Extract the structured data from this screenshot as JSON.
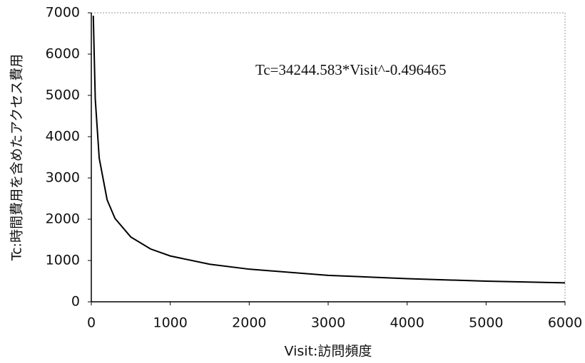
{
  "chart_data": {
    "type": "line",
    "x_label": "Visit:訪問頻度",
    "y_label": "Tc:時間費用を含めたアクセス費用",
    "annotation": "Tc=34244.583*Visit^-0.496465",
    "x": [
      25,
      50,
      100,
      200,
      300,
      500,
      750,
      1000,
      1500,
      2000,
      3000,
      4000,
      5000,
      6000
    ],
    "series": [
      {
        "color": "#000000",
        "values": [
          6930,
          4910,
          3480,
          2470,
          2020,
          1570,
          1280,
          1110,
          910,
          790,
          640,
          560,
          500,
          460
        ]
      }
    ],
    "xlim": [
      0,
      6000
    ],
    "xticks": [
      0,
      1000,
      2000,
      3000,
      4000,
      5000,
      6000
    ],
    "ylim": [
      0,
      7000
    ],
    "yticks": [
      0,
      1000,
      2000,
      3000,
      4000,
      5000,
      6000,
      7000
    ]
  }
}
